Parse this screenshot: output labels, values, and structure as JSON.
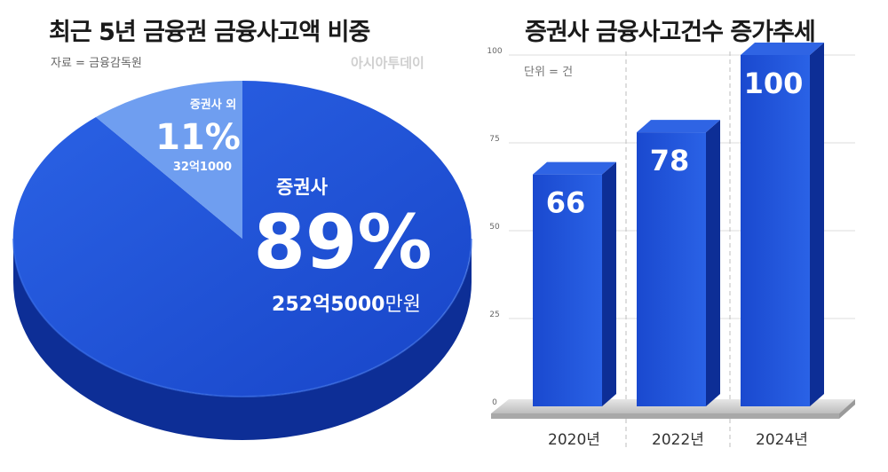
{
  "watermark": "아시아투데이",
  "left": {
    "title": "최근 5년 금융권 금융사고액 비중",
    "source": "자료 = 금융감독원"
  },
  "right": {
    "title": "증권사 금융사고건수 증가추세",
    "unit": "단위 = 건"
  },
  "colors": {
    "main_blue": "#1c4fd6",
    "dark_blue": "#0d2e96",
    "light_blue": "#6f9ef0",
    "grid": "#dddddd"
  },
  "chart_data": [
    {
      "type": "pie",
      "title": "최근 5년 금융권 금융사고액 비중",
      "slices": [
        {
          "name": "증권사",
          "percent_label": "89%",
          "amount_main": "252억5000",
          "amount_unit": "만원",
          "value": 89
        },
        {
          "name": "증권사 외",
          "percent_label": "11%",
          "amount_main": "32억1000",
          "amount_unit": "",
          "value": 11
        }
      ]
    },
    {
      "type": "bar",
      "title": "증권사 금융사고건수 증가추세",
      "categories": [
        "2020년",
        "2022년",
        "2024년"
      ],
      "values": [
        66,
        78,
        100
      ],
      "ylim": [
        0,
        100
      ],
      "yticks": [
        0,
        25,
        50,
        75,
        100
      ],
      "ylabel": "단위 = 건",
      "grid": true
    }
  ]
}
